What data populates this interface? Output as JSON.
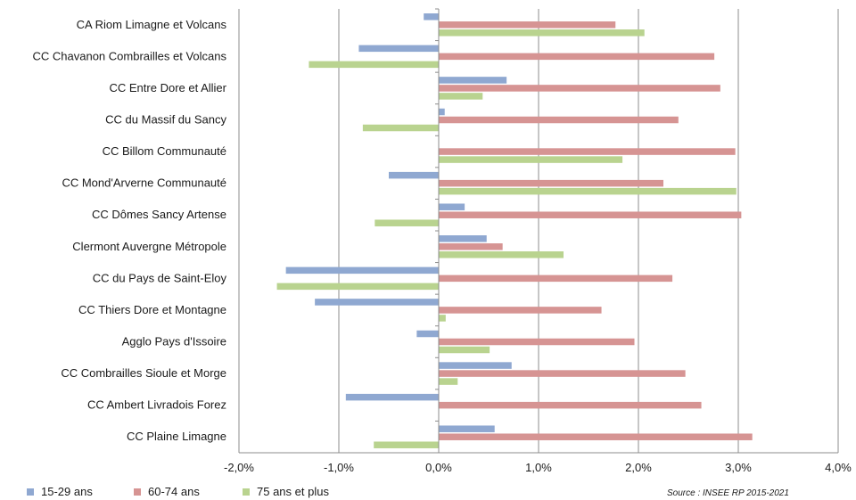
{
  "chart_data": {
    "type": "bar",
    "orientation": "horizontal",
    "categories": [
      "CA Riom Limagne et Volcans",
      "CC Chavanon Combrailles et Volcans",
      "CC Entre Dore et Allier",
      "CC du Massif du Sancy",
      "CC Billom Communauté",
      "CC Mond'Arverne Communauté",
      "CC Dômes Sancy Artense",
      "Clermont Auvergne Métropole",
      "CC du Pays de Saint-Eloy",
      "CC Thiers Dore et Montagne",
      "Agglo Pays d'Issoire",
      "CC Combrailles Sioule et Morge",
      "CC Ambert Livradois Forez",
      "CC Plaine Limagne"
    ],
    "series": [
      {
        "name": "15-29 ans",
        "color": "#8FA8D1",
        "values": [
          -0.15,
          -0.8,
          0.68,
          0.06,
          0.0,
          -0.5,
          0.26,
          0.48,
          -1.53,
          -1.24,
          -0.22,
          0.73,
          -0.93,
          0.56
        ]
      },
      {
        "name": "60-74 ans",
        "color": "#D69493",
        "values": [
          1.77,
          2.76,
          2.82,
          2.4,
          2.97,
          2.25,
          3.03,
          0.64,
          2.34,
          1.63,
          1.96,
          2.47,
          2.63,
          3.14
        ]
      },
      {
        "name": "75 ans et plus",
        "color": "#B9D38F",
        "values": [
          2.06,
          -1.3,
          0.44,
          -0.76,
          1.84,
          2.98,
          -0.64,
          1.25,
          -1.62,
          0.07,
          0.51,
          0.19,
          0.0,
          -0.65
        ]
      }
    ],
    "xlim": [
      -2.0,
      4.0
    ],
    "xticks": [
      -2.0,
      -1.0,
      0.0,
      1.0,
      2.0,
      3.0,
      4.0
    ],
    "xtick_labels": [
      "-2,0%",
      "-1,0%",
      "0,0%",
      "1,0%",
      "2,0%",
      "3,0%",
      "4,0%"
    ],
    "grid": "vertical",
    "legend_position": "bottom-left",
    "source": "Source : INSEE RP 2015-2021"
  }
}
